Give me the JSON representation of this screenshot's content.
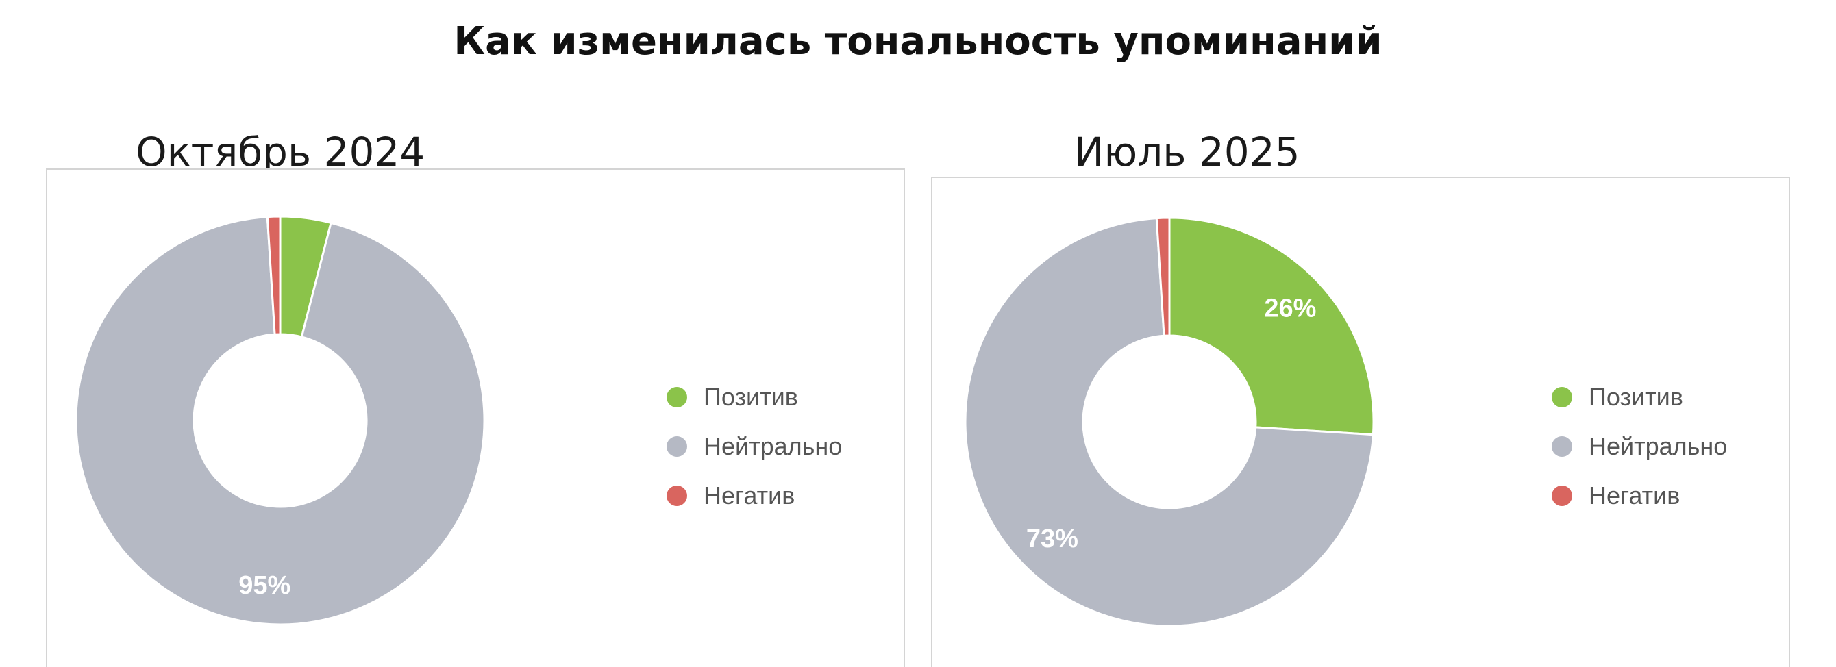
{
  "title": "Как изменилась тональность упоминаний",
  "colors": {
    "positive": "#8bc34a",
    "neutral": "#b5b9c4",
    "negative": "#d9655f"
  },
  "chart_data": [
    {
      "type": "pie",
      "title": "Октябрь 2024",
      "donut": true,
      "legend_position": "right",
      "categories": [
        "Позитив",
        "Нейтрально",
        "Негатив"
      ],
      "values": [
        4,
        95,
        1
      ],
      "value_unit": "%",
      "data_labels": [
        null,
        "95%",
        null
      ]
    },
    {
      "type": "pie",
      "title": "Июль 2025",
      "donut": true,
      "legend_position": "right",
      "categories": [
        "Позитив",
        "Нейтрально",
        "Негатив"
      ],
      "values": [
        26,
        73,
        1
      ],
      "value_unit": "%",
      "data_labels": [
        "26%",
        "73%",
        null
      ]
    }
  ]
}
